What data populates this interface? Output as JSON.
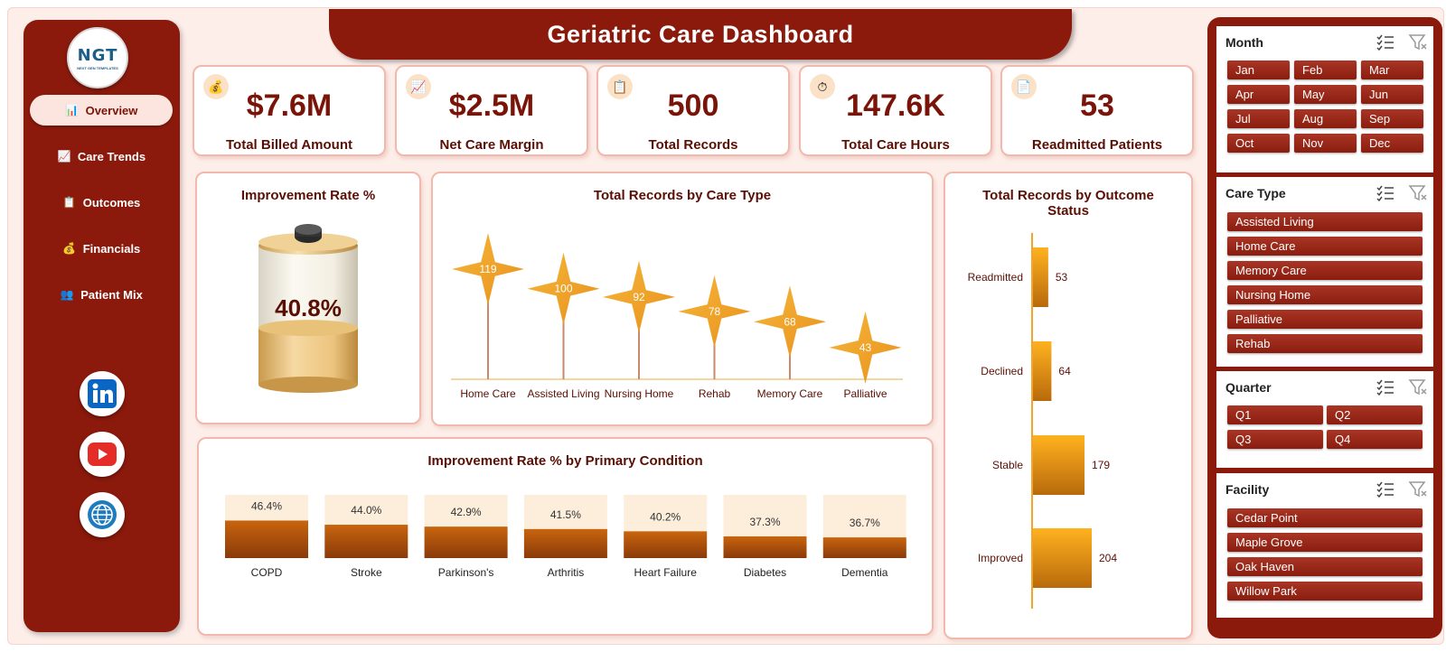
{
  "header": {
    "title": "Geriatric Care Dashboard"
  },
  "logo": {
    "mark": "NGT",
    "sub": "NEXT GEN TEMPLATES"
  },
  "nav": [
    {
      "label": "Overview",
      "icon": "📊",
      "icon_name": "bar-chart-icon",
      "active": true
    },
    {
      "label": "Care Trends",
      "icon": "📈",
      "icon_name": "trend-chart-icon",
      "active": false
    },
    {
      "label": "Outcomes",
      "icon": "📋",
      "icon_name": "clipboard-icon",
      "active": false
    },
    {
      "label": "Financials",
      "icon": "💰",
      "icon_name": "money-bag-icon",
      "active": false
    },
    {
      "label": "Patient Mix",
      "icon": "👥",
      "icon_name": "people-icon",
      "active": false
    }
  ],
  "social": [
    "linkedin-icon",
    "youtube-icon",
    "globe-icon"
  ],
  "kpis": [
    {
      "value": "$7.6M",
      "label": "Total Billed Amount",
      "icon": "💰",
      "icon_name": "money-bag-icon"
    },
    {
      "value": "$2.5M",
      "label": "Net Care Margin",
      "icon": "📈",
      "icon_name": "trend-chart-icon"
    },
    {
      "value": "500",
      "label": "Total Records",
      "icon": "📋",
      "icon_name": "clipboard-icon"
    },
    {
      "value": "147.6K",
      "label": "Total Care Hours",
      "icon": "⏱",
      "icon_name": "stopwatch-icon"
    },
    {
      "value": "53",
      "label": "Readmitted Patients",
      "icon": "📄",
      "icon_name": "document-icon"
    }
  ],
  "improvement_gauge": {
    "title": "Improvement Rate %",
    "value_label": "40.8%",
    "value": 40.8
  },
  "chart_data": [
    {
      "type": "bar",
      "title": "Total Records by Care Type",
      "categories": [
        "Home Care",
        "Assisted Living",
        "Nursing Home",
        "Rehab",
        "Memory Care",
        "Palliative"
      ],
      "values": [
        119,
        100,
        92,
        78,
        68,
        43
      ]
    },
    {
      "type": "bar",
      "orientation": "horizontal",
      "title": "Total Records by Outcome Status",
      "categories": [
        "Readmitted",
        "Declined",
        "Stable",
        "Improved"
      ],
      "values": [
        53,
        64,
        179,
        204
      ]
    },
    {
      "type": "bar",
      "title": "Improvement Rate % by Primary Condition",
      "categories": [
        "COPD",
        "Stroke",
        "Parkinson's",
        "Arthritis",
        "Heart Failure",
        "Diabetes",
        "Dementia"
      ],
      "values": [
        46.4,
        44.0,
        42.9,
        41.5,
        40.2,
        37.3,
        36.7
      ],
      "labels": [
        "46.4%",
        "44.0%",
        "42.9%",
        "41.5%",
        "40.2%",
        "37.3%",
        "36.7%"
      ]
    }
  ],
  "slicers": {
    "month": {
      "title": "Month",
      "items": [
        "Jan",
        "Feb",
        "Mar",
        "Apr",
        "May",
        "Jun",
        "Jul",
        "Aug",
        "Sep",
        "Oct",
        "Nov",
        "Dec"
      ]
    },
    "care_type": {
      "title": "Care Type",
      "items": [
        "Assisted Living",
        "Home Care",
        "Memory Care",
        "Nursing Home",
        "Palliative",
        "Rehab"
      ]
    },
    "quarter": {
      "title": "Quarter",
      "items": [
        "Q1",
        "Q2",
        "Q3",
        "Q4"
      ]
    },
    "facility": {
      "title": "Facility",
      "items": [
        "Cedar Point",
        "Maple Grove",
        "Oak Haven",
        "Willow Park"
      ]
    }
  },
  "colors": {
    "maroon": "#8b1a0c",
    "gold": "#f3a42a",
    "bronze": "#b8620f"
  }
}
